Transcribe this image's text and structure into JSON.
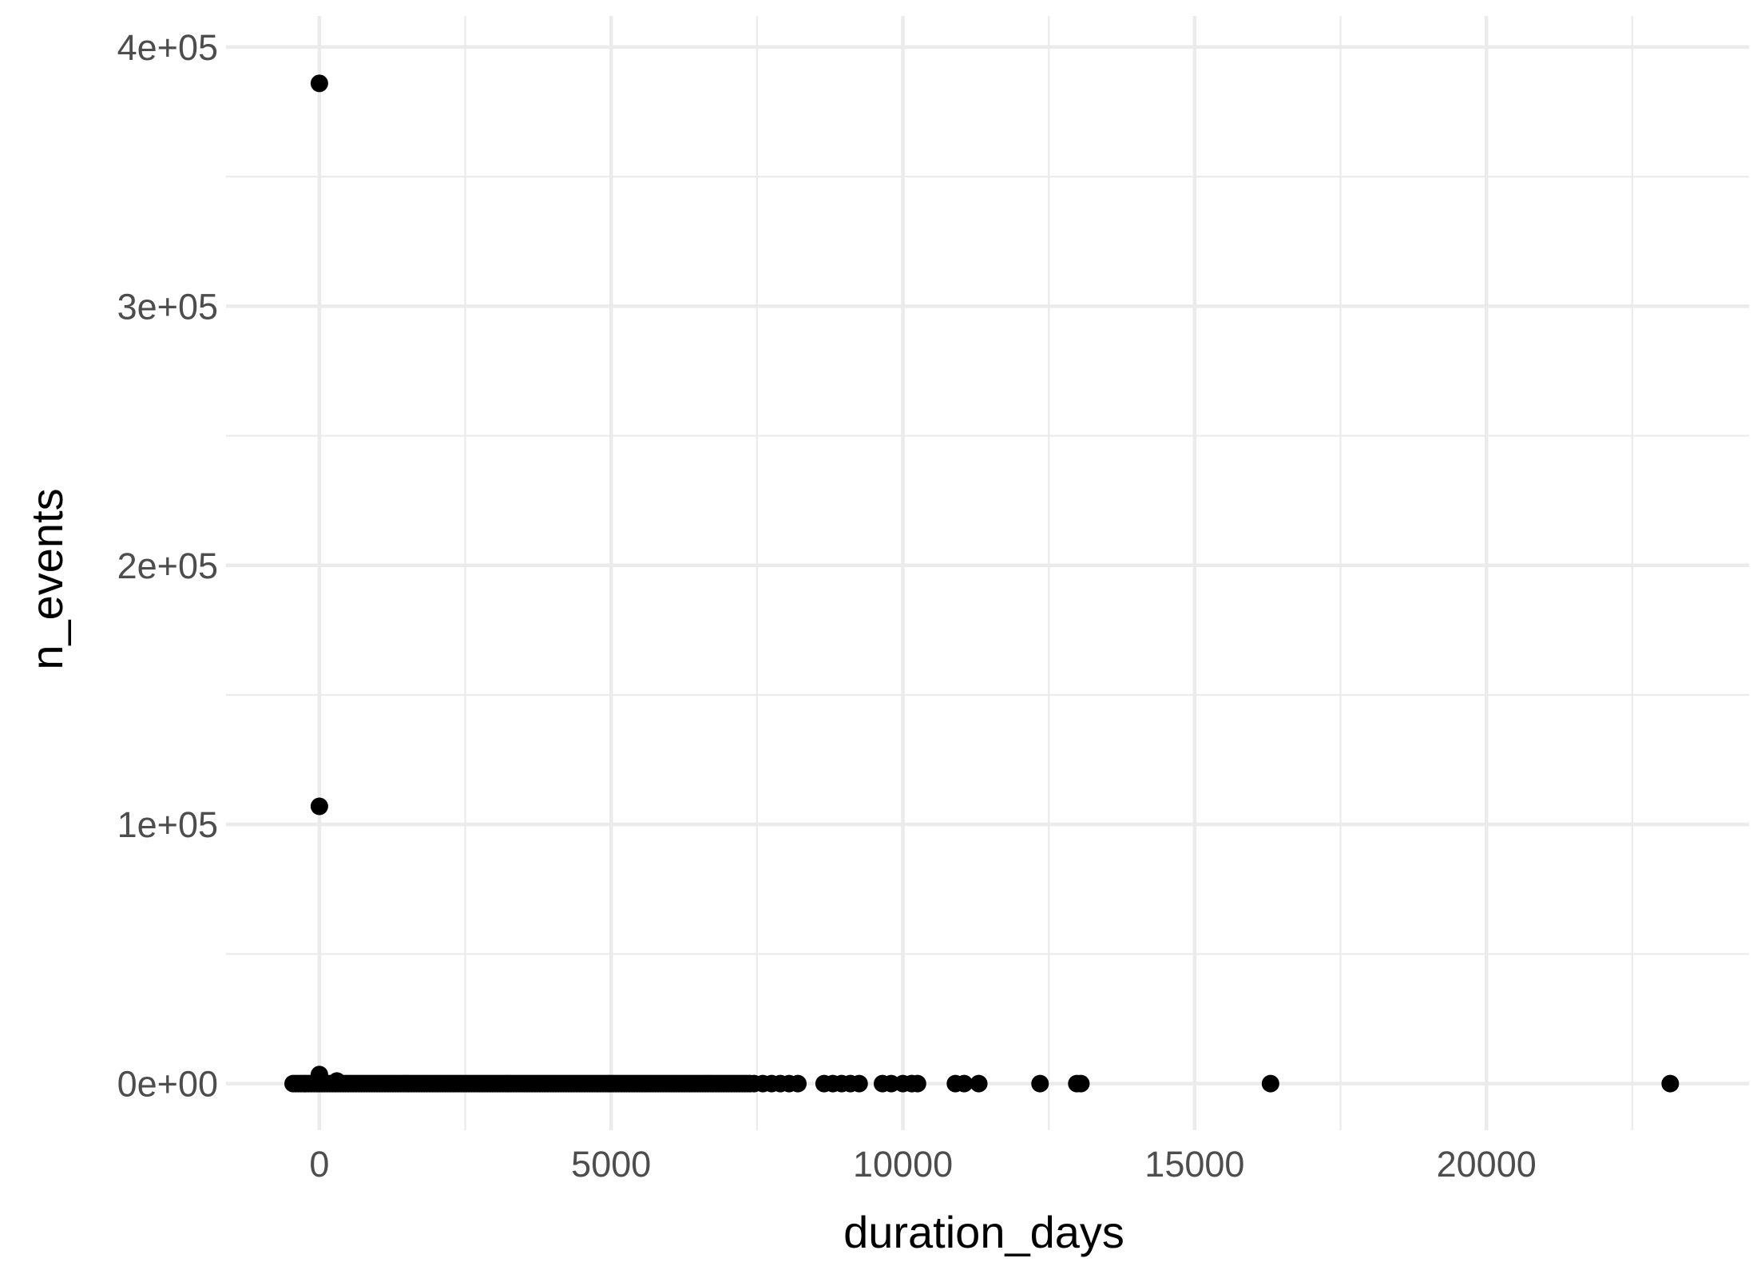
{
  "chart_data": {
    "type": "scatter",
    "title": "",
    "xlabel": "duration_days",
    "ylabel": "n_events",
    "xlim": [
      -1600,
      24500
    ],
    "ylim": [
      -18000,
      412000
    ],
    "x_ticks": [
      0,
      5000,
      10000,
      15000,
      20000
    ],
    "x_tick_labels": [
      "0",
      "5000",
      "10000",
      "15000",
      "20000"
    ],
    "y_ticks": [
      0,
      100000,
      200000,
      300000,
      400000
    ],
    "y_tick_labels": [
      "0e+00",
      "1e+05",
      "2e+05",
      "3e+05",
      "4e+05"
    ],
    "grid": true,
    "legend": "none",
    "point_color": "#000000",
    "background": "#ffffff",
    "dense_band": {
      "x_from": -450,
      "x_to": 7400,
      "step": 45,
      "y": 0
    },
    "points": [
      {
        "x": 0,
        "y": 386000
      },
      {
        "x": 0,
        "y": 107000
      },
      {
        "x": 0,
        "y": 3500
      },
      {
        "x": 300,
        "y": 1000
      },
      {
        "x": 7450,
        "y": 0
      },
      {
        "x": 7600,
        "y": 0
      },
      {
        "x": 7750,
        "y": 0
      },
      {
        "x": 7900,
        "y": 0
      },
      {
        "x": 8050,
        "y": 0
      },
      {
        "x": 8200,
        "y": 0
      },
      {
        "x": 8650,
        "y": 0
      },
      {
        "x": 8800,
        "y": 0
      },
      {
        "x": 8950,
        "y": 0
      },
      {
        "x": 9100,
        "y": 0
      },
      {
        "x": 9250,
        "y": 0
      },
      {
        "x": 9650,
        "y": 0
      },
      {
        "x": 9800,
        "y": 0
      },
      {
        "x": 10000,
        "y": 0
      },
      {
        "x": 10150,
        "y": 0
      },
      {
        "x": 10250,
        "y": 0
      },
      {
        "x": 10900,
        "y": 0
      },
      {
        "x": 11050,
        "y": 0
      },
      {
        "x": 11300,
        "y": 0
      },
      {
        "x": 12350,
        "y": 0
      },
      {
        "x": 12980,
        "y": 0
      },
      {
        "x": 13050,
        "y": 0
      },
      {
        "x": 16300,
        "y": 0
      },
      {
        "x": 23150,
        "y": 0
      }
    ]
  }
}
